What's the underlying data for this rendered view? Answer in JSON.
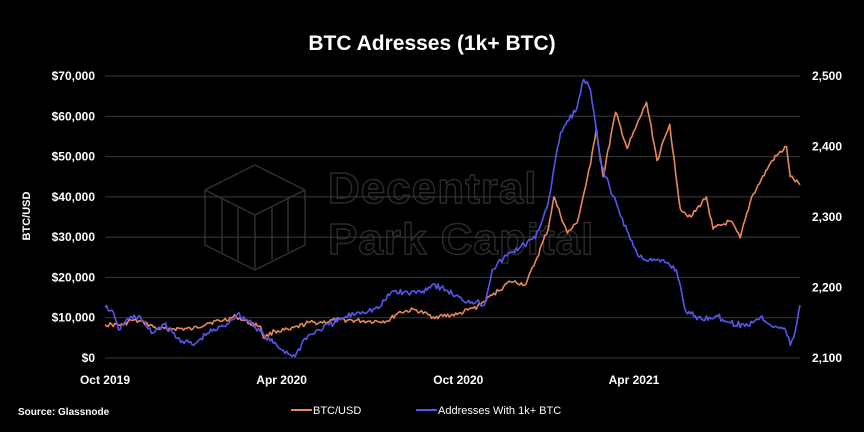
{
  "chart_data": {
    "type": "line",
    "title": "BTC Adresses (1k+ BTC)",
    "ylabel": "BTC/USD",
    "y2label": "",
    "ylim": [
      0,
      70000
    ],
    "y2lim": [
      2100,
      2500
    ],
    "xlim": [
      "2019-10-01",
      "2021-09-20"
    ],
    "x_ticks": [
      {
        "date": "2019-10-01",
        "label": "Oct 2019"
      },
      {
        "date": "2020-04-01",
        "label": "Apr 2020"
      },
      {
        "date": "2020-10-01",
        "label": "Oct 2020"
      },
      {
        "date": "2021-04-01",
        "label": "Apr 2021"
      }
    ],
    "y_ticks": [
      {
        "value": 0,
        "label": "$0"
      },
      {
        "value": 10000,
        "label": "$10,000"
      },
      {
        "value": 20000,
        "label": "$20,000"
      },
      {
        "value": 30000,
        "label": "$30,000"
      },
      {
        "value": 40000,
        "label": "$40,000"
      },
      {
        "value": 50000,
        "label": "$50,000"
      },
      {
        "value": 60000,
        "label": "$60,000"
      },
      {
        "value": 70000,
        "label": "$70,000"
      }
    ],
    "y2_ticks": [
      {
        "value": 2100,
        "label": "2,100"
      },
      {
        "value": 2200,
        "label": "2,200"
      },
      {
        "value": 2300,
        "label": "2,300"
      },
      {
        "value": 2400,
        "label": "2,400"
      },
      {
        "value": 2500,
        "label": "2,500"
      }
    ],
    "grid": true,
    "legend_position": "bottom-center",
    "series": [
      {
        "name": "BTC/USD",
        "color": "#e8875a",
        "axis": "left",
        "points": [
          [
            "2019-10-01",
            8300
          ],
          [
            "2019-10-20",
            8200
          ],
          [
            "2019-10-28",
            9400
          ],
          [
            "2019-11-10",
            8800
          ],
          [
            "2019-11-25",
            7200
          ],
          [
            "2019-12-10",
            7300
          ],
          [
            "2019-12-31",
            7200
          ],
          [
            "2020-01-15",
            8700
          ],
          [
            "2020-02-01",
            9400
          ],
          [
            "2020-02-14",
            10300
          ],
          [
            "2020-02-28",
            8600
          ],
          [
            "2020-03-10",
            7900
          ],
          [
            "2020-03-13",
            5000
          ],
          [
            "2020-03-25",
            6700
          ],
          [
            "2020-04-10",
            7000
          ],
          [
            "2020-04-29",
            8800
          ],
          [
            "2020-05-10",
            8800
          ],
          [
            "2020-06-01",
            9500
          ],
          [
            "2020-06-30",
            9100
          ],
          [
            "2020-07-20",
            9200
          ],
          [
            "2020-07-31",
            11300
          ],
          [
            "2020-08-17",
            12000
          ],
          [
            "2020-09-05",
            10200
          ],
          [
            "2020-09-30",
            10800
          ],
          [
            "2020-10-21",
            12800
          ],
          [
            "2020-11-05",
            15600
          ],
          [
            "2020-11-24",
            19000
          ],
          [
            "2020-12-10",
            18300
          ],
          [
            "2020-12-20",
            24000
          ],
          [
            "2021-01-02",
            32000
          ],
          [
            "2021-01-08",
            40000
          ],
          [
            "2021-01-22",
            31000
          ],
          [
            "2021-02-01",
            33500
          ],
          [
            "2021-02-15",
            48000
          ],
          [
            "2021-02-21",
            57000
          ],
          [
            "2021-02-28",
            45000
          ],
          [
            "2021-03-13",
            61000
          ],
          [
            "2021-03-25",
            52000
          ],
          [
            "2021-04-14",
            63500
          ],
          [
            "2021-04-25",
            49000
          ],
          [
            "2021-05-08",
            58000
          ],
          [
            "2021-05-19",
            37000
          ],
          [
            "2021-05-30",
            35000
          ],
          [
            "2021-06-15",
            40000
          ],
          [
            "2021-06-22",
            32000
          ],
          [
            "2021-07-10",
            34000
          ],
          [
            "2021-07-20",
            29800
          ],
          [
            "2021-08-01",
            40000
          ],
          [
            "2021-08-22",
            49000
          ],
          [
            "2021-09-06",
            52500
          ],
          [
            "2021-09-10",
            45000
          ],
          [
            "2021-09-20",
            43000
          ]
        ]
      },
      {
        "name": "Addresses With 1k+ BTC",
        "color": "#5656ee",
        "axis": "right",
        "points": [
          [
            "2019-10-01",
            2172
          ],
          [
            "2019-10-08",
            2168
          ],
          [
            "2019-10-15",
            2140
          ],
          [
            "2019-10-25",
            2155
          ],
          [
            "2019-11-05",
            2160
          ],
          [
            "2019-11-18",
            2135
          ],
          [
            "2019-12-01",
            2148
          ],
          [
            "2019-12-15",
            2128
          ],
          [
            "2020-01-01",
            2118
          ],
          [
            "2020-01-15",
            2135
          ],
          [
            "2020-02-01",
            2145
          ],
          [
            "2020-02-15",
            2162
          ],
          [
            "2020-03-01",
            2150
          ],
          [
            "2020-03-15",
            2130
          ],
          [
            "2020-04-01",
            2112
          ],
          [
            "2020-04-15",
            2102
          ],
          [
            "2020-04-25",
            2128
          ],
          [
            "2020-05-10",
            2140
          ],
          [
            "2020-06-01",
            2155
          ],
          [
            "2020-06-20",
            2165
          ],
          [
            "2020-07-10",
            2170
          ],
          [
            "2020-07-25",
            2195
          ],
          [
            "2020-08-10",
            2192
          ],
          [
            "2020-08-25",
            2195
          ],
          [
            "2020-09-05",
            2205
          ],
          [
            "2020-09-20",
            2195
          ],
          [
            "2020-10-05",
            2182
          ],
          [
            "2020-10-20",
            2180
          ],
          [
            "2020-10-28",
            2175
          ],
          [
            "2020-11-05",
            2225
          ],
          [
            "2020-11-20",
            2245
          ],
          [
            "2020-12-05",
            2258
          ],
          [
            "2020-12-20",
            2270
          ],
          [
            "2021-01-02",
            2320
          ],
          [
            "2021-01-15",
            2420
          ],
          [
            "2021-02-01",
            2455
          ],
          [
            "2021-02-08",
            2495
          ],
          [
            "2021-02-15",
            2480
          ],
          [
            "2021-02-25",
            2380
          ],
          [
            "2021-03-10",
            2330
          ],
          [
            "2021-03-25",
            2280
          ],
          [
            "2021-04-05",
            2245
          ],
          [
            "2021-04-20",
            2238
          ],
          [
            "2021-05-05",
            2235
          ],
          [
            "2021-05-15",
            2225
          ],
          [
            "2021-05-25",
            2165
          ],
          [
            "2021-06-10",
            2155
          ],
          [
            "2021-06-25",
            2160
          ],
          [
            "2021-07-10",
            2150
          ],
          [
            "2021-07-25",
            2145
          ],
          [
            "2021-08-10",
            2158
          ],
          [
            "2021-08-25",
            2145
          ],
          [
            "2021-09-05",
            2140
          ],
          [
            "2021-09-10",
            2118
          ],
          [
            "2021-09-15",
            2138
          ],
          [
            "2021-09-20",
            2175
          ]
        ]
      }
    ]
  },
  "watermark": {
    "line1": "Decentral",
    "line2": "Park Capital"
  },
  "source_text": "Source: Glassnode"
}
